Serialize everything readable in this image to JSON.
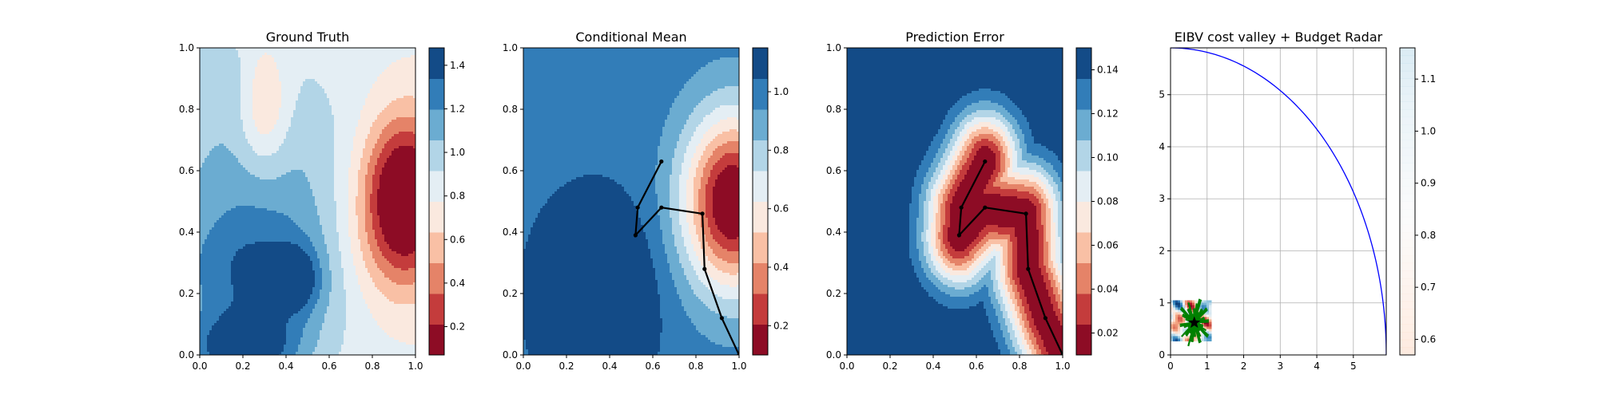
{
  "chart_data": [
    {
      "type": "heatmap",
      "title": "Ground Truth",
      "xlim": [
        0,
        1
      ],
      "ylim": [
        0,
        1
      ],
      "xticks": [
        "0.0",
        "0.2",
        "0.4",
        "0.6",
        "0.8",
        "1.0"
      ],
      "yticks": [
        "0.0",
        "0.2",
        "0.4",
        "0.6",
        "0.8",
        "1.0"
      ],
      "colormap": "RdBu",
      "colorbar": {
        "range": [
          0.07,
          1.48
        ],
        "ticks": [
          "0.2",
          "0.4",
          "0.6",
          "0.8",
          "1.0",
          "1.2",
          "1.4"
        ]
      },
      "blobs": [
        {
          "x": 0.25,
          "y": 0.47,
          "sx": 0.35,
          "sy": 0.35,
          "a": 0.35
        },
        {
          "x": 0.3,
          "y": 0.8,
          "sx": 0.08,
          "sy": 0.14,
          "a": -0.35
        },
        {
          "x": 0.1,
          "y": 0.9,
          "sx": 0.1,
          "sy": 0.08,
          "a": 0.1
        },
        {
          "x": 0.95,
          "y": 0.52,
          "sx": 0.14,
          "sy": 0.18,
          "a": -0.95
        },
        {
          "x": 0.8,
          "y": 0.3,
          "sx": 0.2,
          "sy": 0.15,
          "a": -0.15
        },
        {
          "x": 0.2,
          "y": 0.02,
          "sx": 0.18,
          "sy": 0.08,
          "a": 0.55
        },
        {
          "x": 0.45,
          "y": 0.25,
          "sx": 0.07,
          "sy": 0.07,
          "a": 0.35
        },
        {
          "x": 0.3,
          "y": 0.25,
          "sx": 0.28,
          "sy": 0.14,
          "a": 0.3
        }
      ],
      "base": 0.8
    },
    {
      "type": "heatmap",
      "title": "Conditional Mean",
      "xlim": [
        0,
        1
      ],
      "ylim": [
        0,
        1
      ],
      "xticks": [
        "0.0",
        "0.2",
        "0.4",
        "0.6",
        "0.8",
        "1.0"
      ],
      "yticks": [
        "0.0",
        "0.2",
        "0.4",
        "0.6",
        "0.8",
        "1.0"
      ],
      "colormap": "RdBu",
      "colorbar": {
        "range": [
          0.1,
          1.15
        ],
        "ticks": [
          "0.2",
          "0.4",
          "0.6",
          "0.8",
          "1.0"
        ]
      },
      "blobs": [
        {
          "x": 0.97,
          "y": 0.5,
          "sx": 0.16,
          "sy": 0.2,
          "a": -0.95
        },
        {
          "x": 0.33,
          "y": 0.2,
          "sx": 0.18,
          "sy": 0.2,
          "a": 0.3
        }
      ],
      "base": 1.0,
      "path": {
        "x": [
          0.64,
          0.53,
          0.52,
          0.64,
          0.83,
          0.84,
          0.92,
          1.0
        ],
        "y": [
          0.63,
          0.48,
          0.39,
          0.48,
          0.46,
          0.28,
          0.12,
          0.0
        ]
      }
    },
    {
      "type": "heatmap",
      "title": "Prediction Error",
      "xlim": [
        0,
        1
      ],
      "ylim": [
        0,
        1
      ],
      "xticks": [
        "0.0",
        "0.2",
        "0.4",
        "0.6",
        "0.8",
        "1.0"
      ],
      "yticks": [
        "0.0",
        "0.2",
        "0.4",
        "0.6",
        "0.8",
        "1.0"
      ],
      "colormap": "RdBu",
      "colorbar": {
        "range": [
          0.01,
          0.15
        ],
        "ticks": [
          "0.02",
          "0.04",
          "0.06",
          "0.08",
          "0.10",
          "0.12",
          "0.14"
        ]
      },
      "base": 0.15,
      "path": {
        "x": [
          0.64,
          0.53,
          0.52,
          0.64,
          0.83,
          0.84,
          0.92,
          1.0
        ],
        "y": [
          0.63,
          0.48,
          0.39,
          0.48,
          0.46,
          0.28,
          0.12,
          0.0
        ]
      }
    },
    {
      "type": "scatter",
      "title": "EIBV cost valley + Budget Radar",
      "xlim": [
        0,
        5.9
      ],
      "ylim": [
        0,
        5.9
      ],
      "xticks": [
        "0",
        "1",
        "2",
        "3",
        "4",
        "5"
      ],
      "yticks": [
        "0",
        "1",
        "2",
        "3",
        "4",
        "5"
      ],
      "grid": true,
      "budget_radius": 5.9,
      "colorbar": {
        "range": [
          0.57,
          1.16
        ],
        "ticks": [
          "0.6",
          "0.7",
          "0.8",
          "0.9",
          "1.0",
          "1.1"
        ]
      },
      "current_location": {
        "x": 0.65,
        "y": 0.62
      },
      "colors": {
        "budget": "#0000ff",
        "candidates": "#008000",
        "marker": "#000000"
      }
    }
  ]
}
